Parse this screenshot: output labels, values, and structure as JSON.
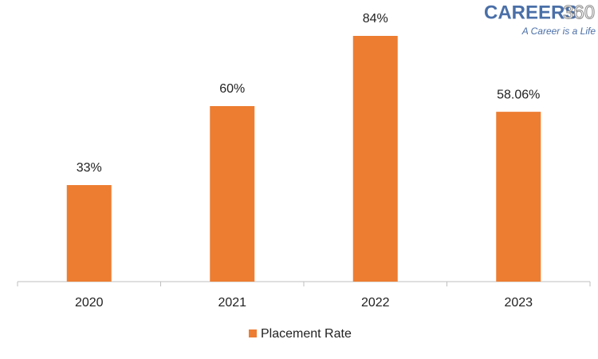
{
  "chart_data": {
    "type": "bar",
    "categories": [
      "2020",
      "2021",
      "2022",
      "2023"
    ],
    "series": [
      {
        "name": "Placement Rate",
        "color": "#ed7d31",
        "values": [
          33,
          60,
          84,
          58.06
        ],
        "value_labels": [
          "33%",
          "60%",
          "84%",
          "58.06%"
        ]
      }
    ],
    "legend": "bottom"
  },
  "logo": {
    "name": "CAREERS",
    "number": "360",
    "tagline": "A Career is a Life"
  }
}
